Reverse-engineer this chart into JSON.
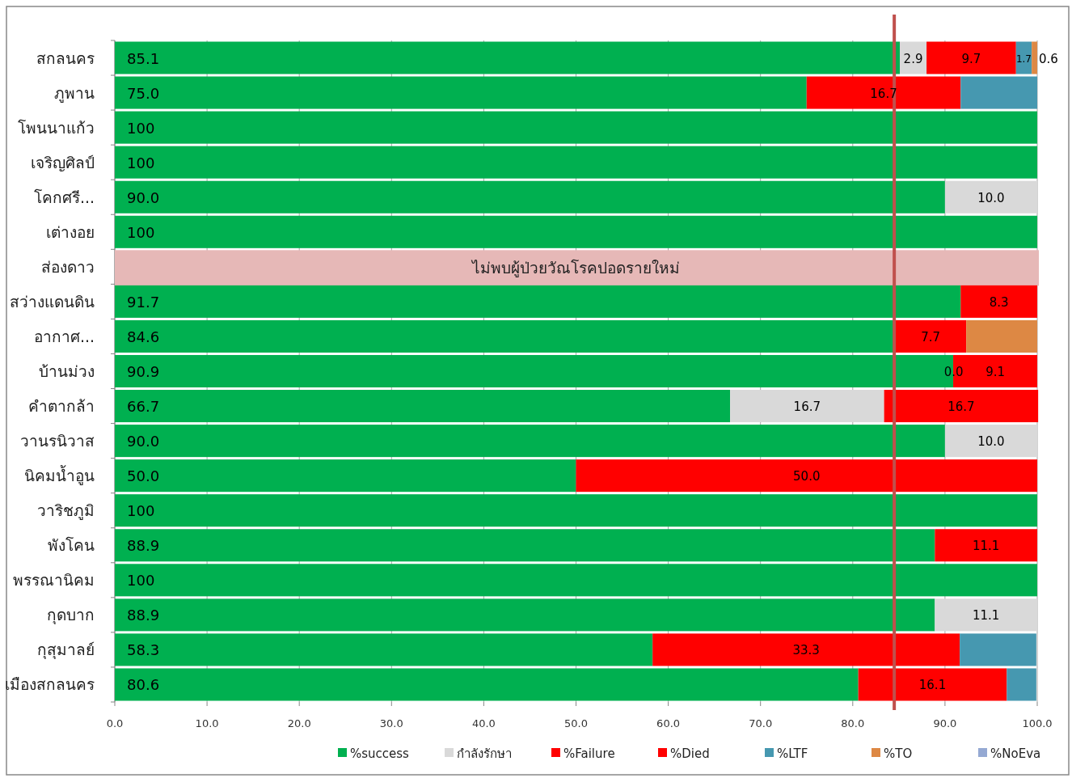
{
  "chart_data": {
    "type": "bar",
    "orientation": "horizontal",
    "stacked": true,
    "categories": [
      "สกลนคร",
      "ภูพาน",
      "โพนนาแก้ว",
      "เจริญศิลป์",
      "โคกศรี...",
      "เต่างอย",
      "ส่องดาว",
      "สว่างแดนดิน",
      "อากาศ...",
      "บ้านม่วง",
      "คำตากล้า",
      "วานรนิวาส",
      "นิคมน้ำอูน",
      "วาริชภูมิ",
      "พังโคน",
      "พรรณานิคม",
      "กุดบาก",
      "กุสุมาลย์",
      "เมืองสกลนคร"
    ],
    "series": [
      {
        "name": "%success",
        "color": "#00b050",
        "values": [
          85.1,
          75.0,
          100,
          100,
          90.0,
          100,
          null,
          91.7,
          84.6,
          90.9,
          66.7,
          90.0,
          50.0,
          100,
          88.9,
          100,
          88.9,
          58.3,
          80.6
        ],
        "value_labels": [
          "85.1",
          "75.0",
          "100",
          "100",
          "90.0",
          "100",
          null,
          "91.7",
          "84.6",
          "90.9",
          "66.7",
          "90.0",
          "50.0",
          "100",
          "88.9",
          "100",
          "88.9",
          "58.3",
          "80.6"
        ]
      },
      {
        "name": "กำลังรักษา",
        "color": "#d9d9d9",
        "values": [
          2.9,
          null,
          null,
          null,
          10.0,
          null,
          null,
          null,
          null,
          null,
          16.7,
          10.0,
          null,
          null,
          null,
          null,
          11.1,
          null,
          null
        ],
        "value_labels": [
          "2.9",
          null,
          null,
          null,
          "10.0",
          null,
          null,
          null,
          null,
          null,
          "16.7",
          "10.0",
          null,
          null,
          null,
          null,
          "11.1",
          null,
          null
        ]
      },
      {
        "name": "%Failure",
        "color": "#ff0000",
        "values": [
          null,
          null,
          null,
          null,
          null,
          null,
          null,
          null,
          null,
          0.0,
          null,
          null,
          null,
          null,
          null,
          null,
          null,
          null,
          null
        ],
        "value_labels": [
          null,
          null,
          null,
          null,
          null,
          null,
          null,
          null,
          null,
          "0.0",
          null,
          null,
          null,
          null,
          null,
          null,
          null,
          null,
          null
        ]
      },
      {
        "name": "%Died",
        "color": "#ff0000",
        "values": [
          9.7,
          16.7,
          null,
          null,
          null,
          null,
          null,
          8.3,
          7.7,
          9.1,
          16.7,
          null,
          50.0,
          null,
          11.1,
          null,
          null,
          33.3,
          16.1
        ],
        "value_labels": [
          "9.7",
          "16.7",
          null,
          null,
          null,
          null,
          null,
          "8.3",
          "7.7",
          "9.1",
          "16.7",
          null,
          "50.0",
          null,
          "11.1",
          null,
          null,
          "33.3",
          "16.1"
        ]
      },
      {
        "name": "%LTF",
        "color": "#4698b0",
        "values": [
          1.7,
          8.3,
          null,
          null,
          null,
          null,
          null,
          null,
          null,
          null,
          null,
          null,
          null,
          null,
          null,
          null,
          null,
          8.3,
          3.2
        ],
        "value_labels": [
          "1.7",
          null,
          null,
          null,
          null,
          null,
          null,
          null,
          null,
          null,
          null,
          null,
          null,
          null,
          null,
          null,
          null,
          null,
          null
        ]
      },
      {
        "name": "%TO",
        "color": "#dd8844",
        "values": [
          0.6,
          null,
          null,
          null,
          null,
          null,
          null,
          null,
          7.7,
          null,
          null,
          null,
          null,
          null,
          null,
          null,
          null,
          null,
          null
        ],
        "value_labels": [
          "0.6",
          null,
          null,
          null,
          null,
          null,
          null,
          null,
          null,
          null,
          null,
          null,
          null,
          null,
          null,
          null,
          null,
          null,
          null
        ]
      },
      {
        "name": "%NoEva",
        "color": "#95a9d3",
        "values": [
          null,
          null,
          null,
          null,
          null,
          null,
          null,
          null,
          null,
          null,
          null,
          null,
          null,
          null,
          null,
          null,
          null,
          null,
          null
        ]
      }
    ],
    "xlim": [
      0,
      100
    ],
    "xticks": [
      {
        "value": 0,
        "label": "0.0"
      },
      {
        "value": 10,
        "label": "10.0"
      },
      {
        "value": 20,
        "label": "20.0"
      },
      {
        "value": 30,
        "label": "30.0"
      },
      {
        "value": 40,
        "label": "40.0"
      },
      {
        "value": 50,
        "label": "50.0"
      },
      {
        "value": 60,
        "label": "60.0"
      },
      {
        "value": 70,
        "label": "70.0"
      },
      {
        "value": 80,
        "label": "80.0"
      },
      {
        "value": 90,
        "label": "90.0"
      },
      {
        "value": 100,
        "label": "100.0"
      }
    ],
    "ref_lines": [
      {
        "axis": "x",
        "value": 84.5,
        "color": "#c0504d"
      }
    ],
    "bands": [
      {
        "axis": "y",
        "from": "ส่องดาว",
        "to": "ส่องดาว",
        "label": "ไม่พบผู้ป่วยวัณโรคปอดรายใหม่",
        "color": "#e6b8b7"
      }
    ],
    "grid": "x",
    "legend": "bottom"
  }
}
